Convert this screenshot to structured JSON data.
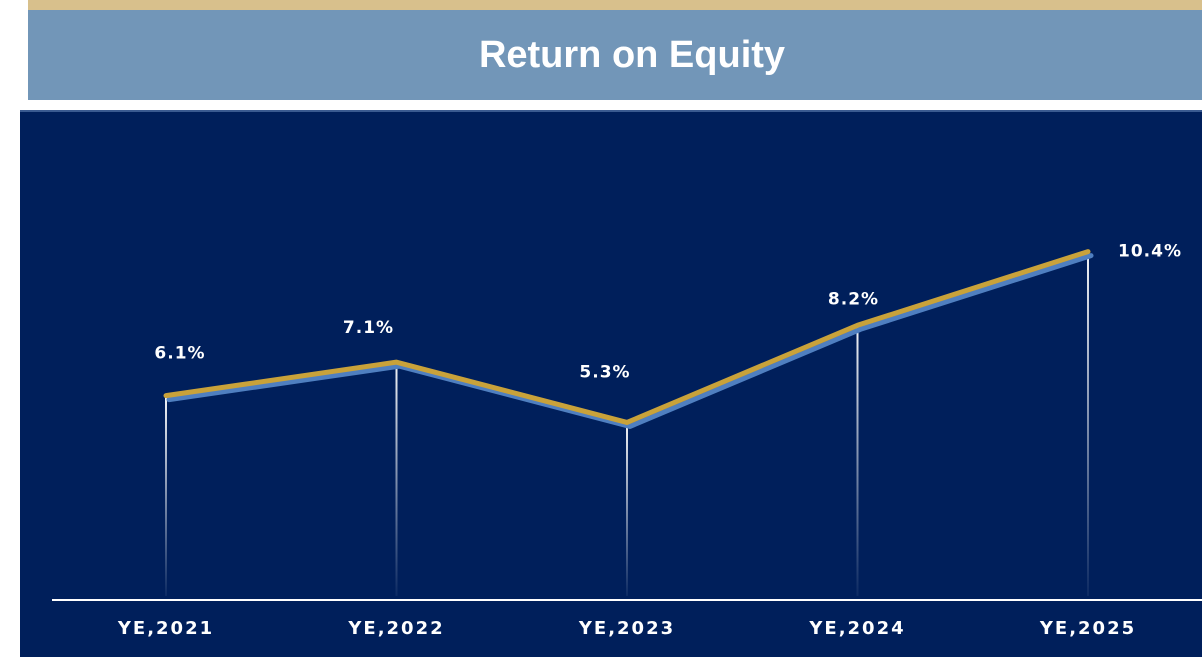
{
  "chart_data": {
    "type": "line",
    "title": "Return on Equity",
    "categories": [
      "YE,2021",
      "YE,2022",
      "YE,2023",
      "YE,2024",
      "YE,2025"
    ],
    "values": [
      6.1,
      7.1,
      5.3,
      8.2,
      10.4
    ],
    "value_labels": [
      "6.1%",
      "7.1%",
      "5.3%",
      "8.2%",
      "10.4%"
    ],
    "color": "#c9a23a"
  }
}
